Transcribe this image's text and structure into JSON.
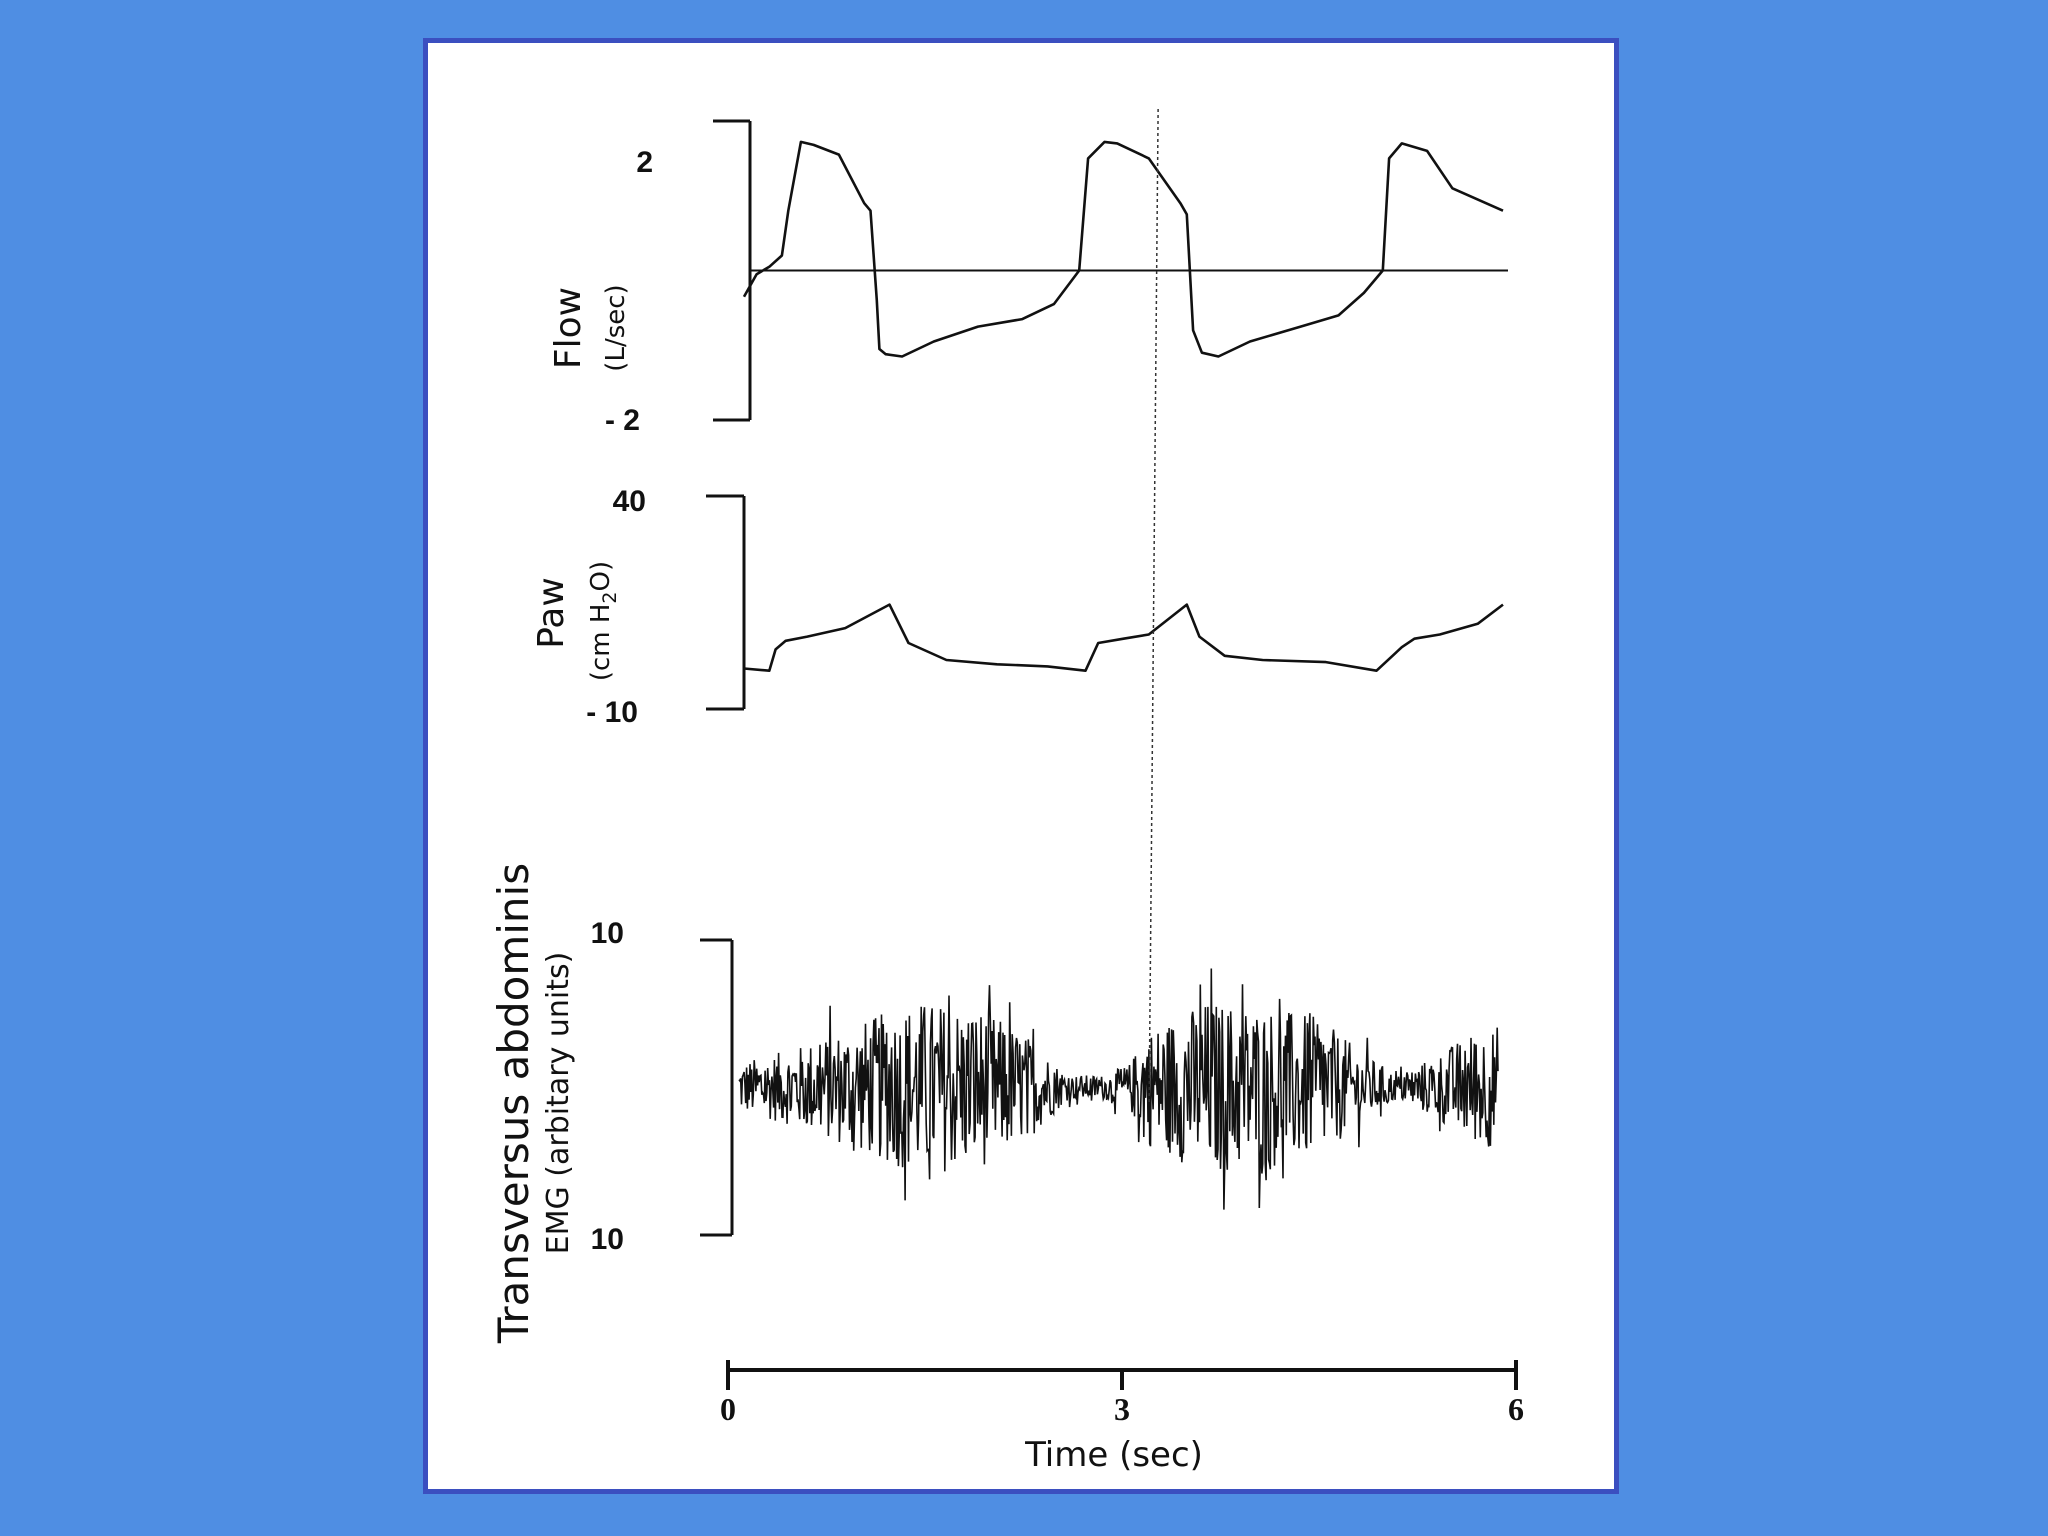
{
  "colors": {
    "background": "#4f8ee3",
    "panel_border": "#3b4fc0",
    "panel": "#ffffff",
    "ink": "#111111"
  },
  "x_axis": {
    "label": "Time (sec)",
    "range": [
      0,
      6
    ],
    "ticks": [
      "0",
      "3",
      "6"
    ]
  },
  "panels": {
    "flow": {
      "label": "Flow",
      "unit": "(L/sec)",
      "tick_top": "2",
      "tick_bottom": "- 2"
    },
    "paw": {
      "label": "Paw",
      "unit_prefix": "(cm H",
      "unit_sub": "2",
      "unit_suffix": "O)",
      "tick_top": "40",
      "tick_bottom": "- 10"
    },
    "emg": {
      "label": "Transversus abdominis",
      "unit": "EMG (arbitary units)",
      "tick_top": "10",
      "tick_bottom": "10"
    }
  },
  "chart_data": [
    {
      "type": "line",
      "title": "",
      "xlabel": "Time (sec)",
      "ylabel": "Flow (L/sec)",
      "xlim": [
        0,
        6
      ],
      "ylim": [
        -2,
        2
      ],
      "zero_line": true,
      "series": [
        {
          "x": [
            0.0,
            0.1,
            0.2,
            0.3,
            0.35,
            0.45,
            0.55,
            0.75,
            0.95,
            1.0,
            1.05,
            1.07,
            1.12,
            1.25,
            1.5,
            1.85,
            2.2,
            2.45,
            2.65,
            2.72,
            2.85,
            2.95,
            3.2,
            3.45,
            3.5,
            3.55,
            3.62,
            3.75,
            4.0,
            4.4,
            4.7,
            4.9,
            5.05,
            5.1,
            5.2,
            5.4,
            5.6,
            6.0
          ],
          "y": [
            -0.35,
            -0.05,
            0.05,
            0.2,
            0.8,
            1.72,
            1.68,
            1.55,
            0.9,
            0.8,
            -0.4,
            -1.05,
            -1.12,
            -1.15,
            -0.95,
            -0.75,
            -0.65,
            -0.45,
            0.0,
            1.5,
            1.72,
            1.7,
            1.5,
            0.9,
            0.75,
            -0.8,
            -1.1,
            -1.15,
            -0.95,
            -0.75,
            -0.6,
            -0.3,
            0.0,
            1.5,
            1.7,
            1.6,
            1.1,
            0.8
          ]
        }
      ]
    },
    {
      "type": "line",
      "title": "",
      "xlabel": "Time (sec)",
      "ylabel": "Paw (cm H2O)",
      "xlim": [
        0,
        6
      ],
      "ylim": [
        -10,
        40
      ],
      "series": [
        {
          "x": [
            0.0,
            0.2,
            0.25,
            0.33,
            0.5,
            0.8,
            1.15,
            1.3,
            1.6,
            2.0,
            2.4,
            2.7,
            2.8,
            3.0,
            3.2,
            3.5,
            3.6,
            3.8,
            4.1,
            4.6,
            5.0,
            5.2,
            5.3,
            5.5,
            5.8,
            6.0
          ],
          "y": [
            -0.5,
            -1.0,
            4.0,
            6.0,
            7.0,
            9.0,
            14.5,
            5.5,
            1.5,
            0.5,
            0.0,
            -1.0,
            5.5,
            6.5,
            7.5,
            14.5,
            7.0,
            2.5,
            1.5,
            1.0,
            -1.0,
            4.5,
            6.5,
            7.5,
            10.0,
            14.5
          ]
        }
      ]
    },
    {
      "type": "line",
      "title": "",
      "xlabel": "Time (sec)",
      "ylabel": "EMG (arbitary units)",
      "xlim": [
        0,
        6
      ],
      "ylim": [
        -10,
        10
      ],
      "series": [
        {
          "x": [
            0.0,
            6.0
          ],
          "y": [
            0.0,
            0.0
          ],
          "envelope": {
            "x": [
              0.0,
              0.4,
              0.9,
              1.4,
              1.9,
              2.3,
              2.6,
              2.9,
              3.1,
              3.2,
              3.7,
              4.2,
              4.6,
              4.9,
              5.2,
              5.5,
              5.8,
              6.0
            ],
            "amplitude": [
              2.0,
              3.0,
              5.0,
              7.0,
              6.5,
              4.0,
              1.0,
              1.0,
              2.0,
              4.5,
              7.0,
              6.5,
              5.5,
              3.0,
              1.0,
              2.5,
              4.5,
              5.0
            ]
          }
        }
      ]
    }
  ],
  "cursor_line": {
    "x_sec": 3.25
  }
}
